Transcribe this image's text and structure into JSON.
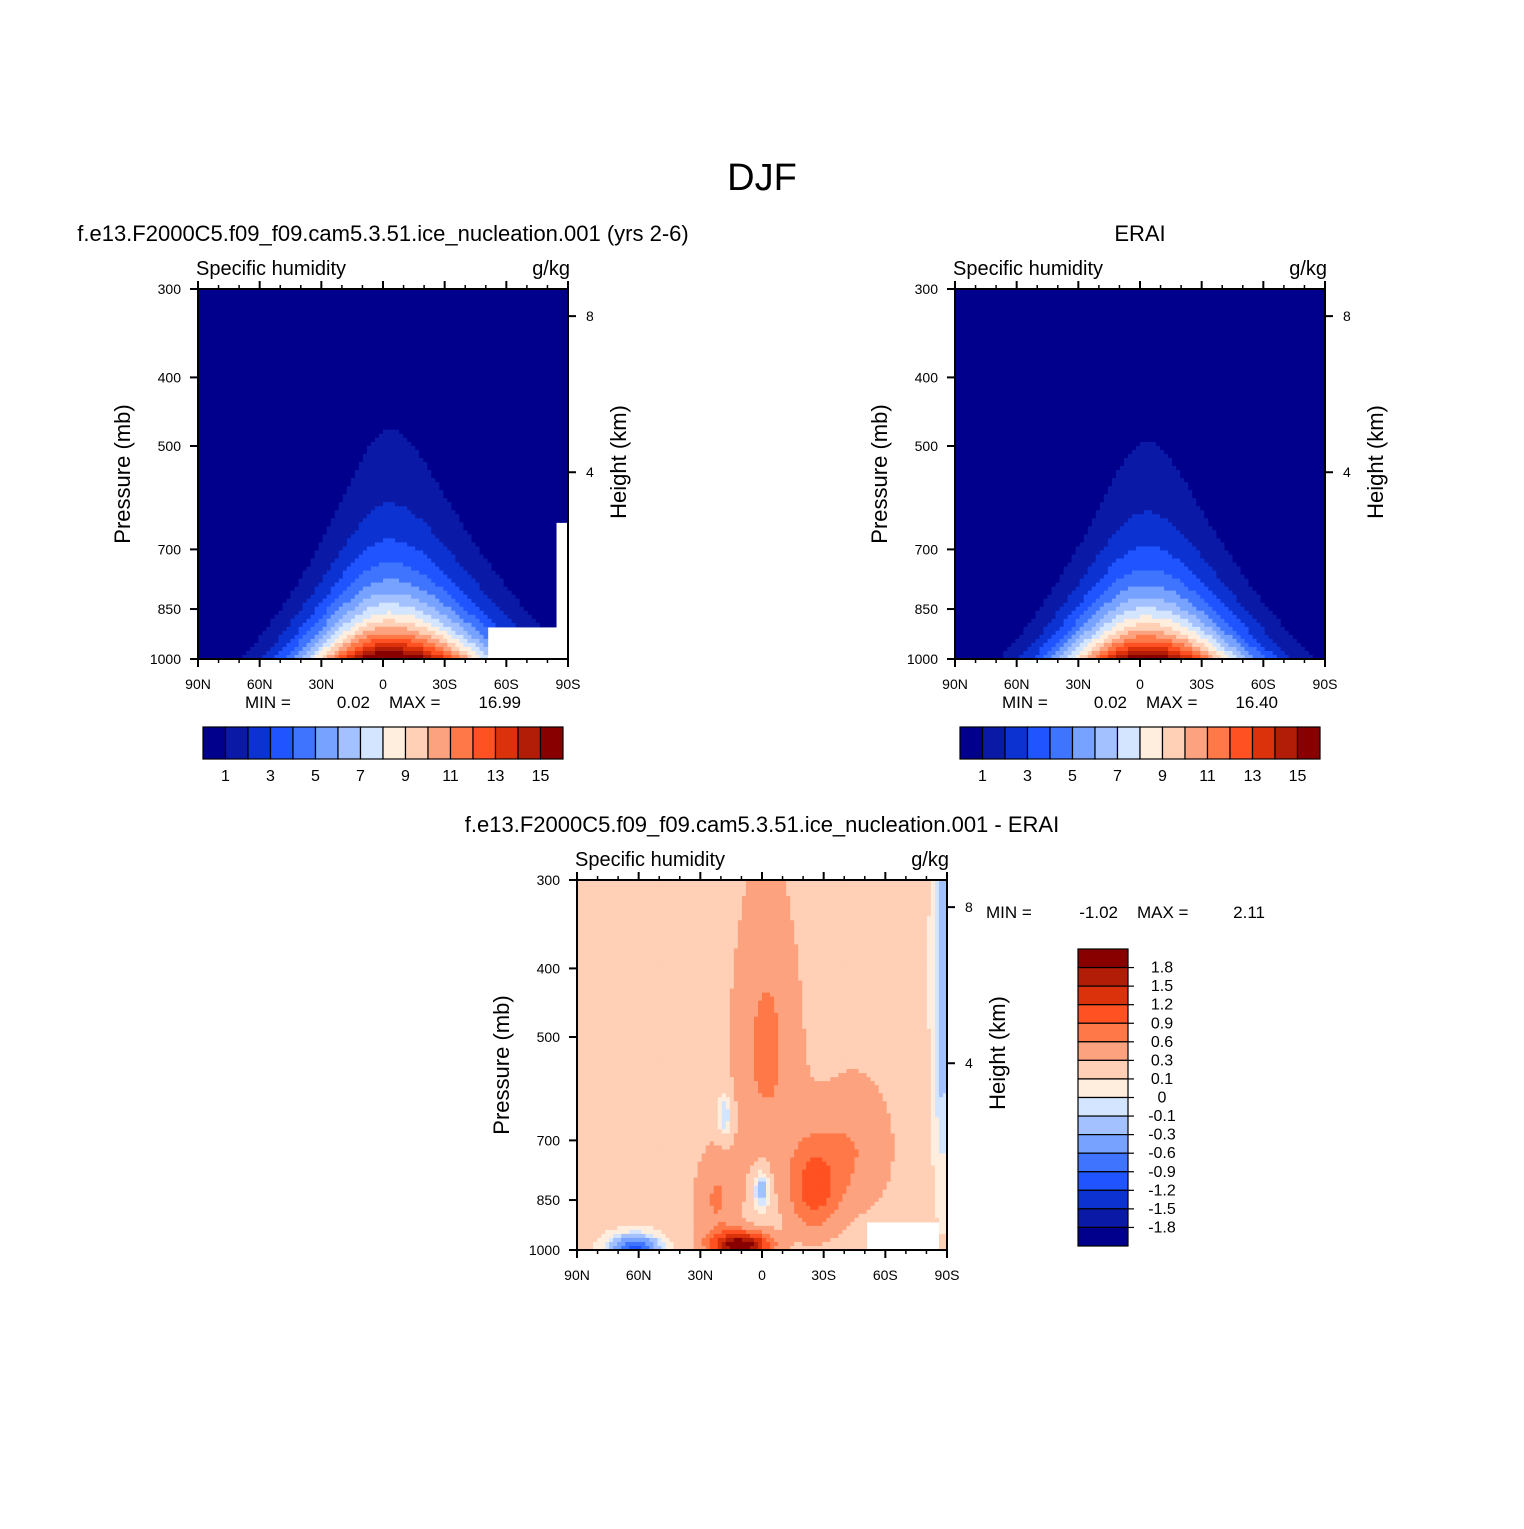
{
  "figure": {
    "title": "DJF"
  },
  "chart_data": [
    {
      "type": "heatmap",
      "title": "f.e13.F2000C5.f09_f09.cam5.3.51.ice_nucleation.001 (yrs 2-6)",
      "subtitle_left": "Specific humidity",
      "subtitle_right": "g/kg",
      "ylabel": "Pressure (mb)",
      "ylabel_right": "Height (km)",
      "x_ticks": [
        "90N",
        "60N",
        "30N",
        "0",
        "30S",
        "60S",
        "90S"
      ],
      "y_ticks": [
        "300",
        "400",
        "500",
        "700",
        "850",
        "1000"
      ],
      "y_right_ticks": [
        "8",
        "4"
      ],
      "stats": {
        "min_label": "MIN =",
        "min_value": "0.02",
        "max_label": "MAX =",
        "max_value": "16.99"
      },
      "field": {
        "surface_peak": 16.99,
        "peak_lat": -3,
        "surface_halfwidth_deg": 30,
        "top_halfwidth_deg": 12,
        "asymmetry": 0.25,
        "scale_height_mb": 185,
        "masked": "surface-topography"
      },
      "colorbar": {
        "orientation": "horizontal",
        "tick_labels": [
          "1",
          "3",
          "5",
          "7",
          "9",
          "11",
          "13",
          "15"
        ],
        "thresholds": [
          1,
          2,
          3,
          4,
          5,
          6,
          7,
          8,
          9,
          10,
          11,
          12,
          13,
          14,
          15
        ],
        "colors": [
          "#00008c",
          "#0a1aa6",
          "#0c32d2",
          "#1f54ff",
          "#3f74ff",
          "#77a2ff",
          "#a3c0ff",
          "#d3e5ff",
          "#ffeedd",
          "#ffcfb6",
          "#fda27f",
          "#ff7848",
          "#ff5122",
          "#dc320c",
          "#b21d08",
          "#880000"
        ]
      }
    },
    {
      "type": "heatmap",
      "title": "ERAI",
      "subtitle_left": "Specific humidity",
      "subtitle_right": "g/kg",
      "ylabel": "Pressure (mb)",
      "ylabel_right": "Height (km)",
      "x_ticks": [
        "90N",
        "60N",
        "30N",
        "0",
        "30S",
        "60S",
        "90S"
      ],
      "y_ticks": [
        "300",
        "400",
        "500",
        "700",
        "850",
        "1000"
      ],
      "y_right_ticks": [
        "8",
        "4"
      ],
      "stats": {
        "min_label": "MIN =",
        "min_value": "0.02",
        "max_label": "MAX =",
        "max_value": "16.40"
      },
      "field": {
        "surface_peak": 16.4,
        "peak_lat": -3,
        "surface_halfwidth_deg": 30,
        "top_halfwidth_deg": 12,
        "asymmetry": 0.15,
        "scale_height_mb": 180,
        "masked": "none"
      },
      "colorbar": {
        "orientation": "horizontal",
        "tick_labels": [
          "1",
          "3",
          "5",
          "7",
          "9",
          "11",
          "13",
          "15"
        ],
        "thresholds": [
          1,
          2,
          3,
          4,
          5,
          6,
          7,
          8,
          9,
          10,
          11,
          12,
          13,
          14,
          15
        ],
        "colors": [
          "#00008c",
          "#0a1aa6",
          "#0c32d2",
          "#1f54ff",
          "#3f74ff",
          "#77a2ff",
          "#a3c0ff",
          "#d3e5ff",
          "#ffeedd",
          "#ffcfb6",
          "#fda27f",
          "#ff7848",
          "#ff5122",
          "#dc320c",
          "#b21d08",
          "#880000"
        ]
      }
    },
    {
      "type": "heatmap",
      "title": "f.e13.F2000C5.f09_f09.cam5.3.51.ice_nucleation.001 - ERAI",
      "subtitle_left": "Specific humidity",
      "subtitle_right": "g/kg",
      "ylabel": "Pressure (mb)",
      "ylabel_right": "Height (km)",
      "x_ticks": [
        "90N",
        "60N",
        "30N",
        "0",
        "30S",
        "60S",
        "90S"
      ],
      "y_ticks": [
        "300",
        "400",
        "500",
        "700",
        "850",
        "1000"
      ],
      "y_right_ticks": [
        "8",
        "4"
      ],
      "stats": {
        "min_label": "MIN =",
        "min_value": "-1.02",
        "max_label": "MAX =",
        "max_value": "2.11"
      },
      "colorbar": {
        "orientation": "vertical",
        "tick_labels": [
          "1.8",
          "1.5",
          "1.2",
          "0.9",
          "0.6",
          "0.3",
          "0.1",
          "0",
          "-0.1",
          "-0.3",
          "-0.6",
          "-0.9",
          "-1.2",
          "-1.5",
          "-1.8"
        ],
        "thresholds": [
          -1.8,
          -1.5,
          -1.2,
          -0.9,
          -0.6,
          -0.3,
          -0.1,
          0,
          0.1,
          0.3,
          0.6,
          0.9,
          1.2,
          1.5,
          1.8
        ],
        "colors": [
          "#00008c",
          "#0a1aa6",
          "#0c32d2",
          "#1f54ff",
          "#3f74ff",
          "#77a2ff",
          "#a3c0ff",
          "#d3e5ff",
          "#ffeedd",
          "#ffcfb6",
          "#fda27f",
          "#ff7848",
          "#ff5122",
          "#dc320c",
          "#b21d08",
          "#880000"
        ]
      }
    }
  ]
}
